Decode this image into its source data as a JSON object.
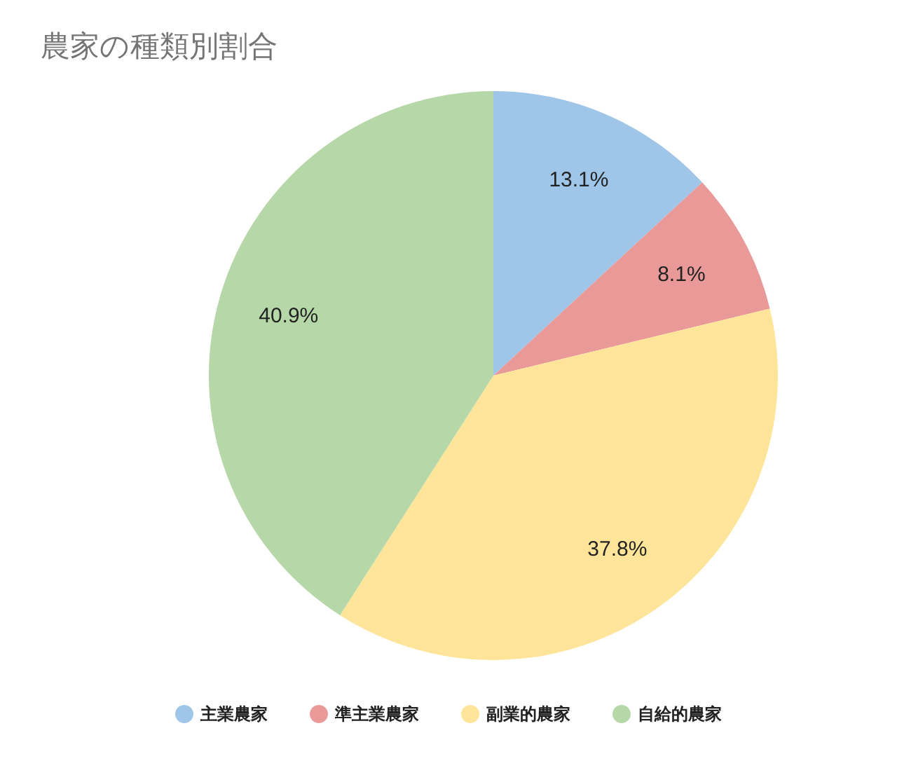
{
  "chart_data": {
    "type": "pie",
    "title": "農家の種類別割合",
    "categories": [
      "主業農家",
      "準主業農家",
      "副業的農家",
      "自給的農家"
    ],
    "values": [
      13.1,
      8.1,
      37.8,
      40.9
    ],
    "colors": [
      "#9fc5e8",
      "#ea9999",
      "#ffe599",
      "#b6d7a8"
    ],
    "value_labels": [
      "13.1%",
      "8.1%",
      "37.8%",
      "40.9%"
    ],
    "legend": "bottom"
  }
}
